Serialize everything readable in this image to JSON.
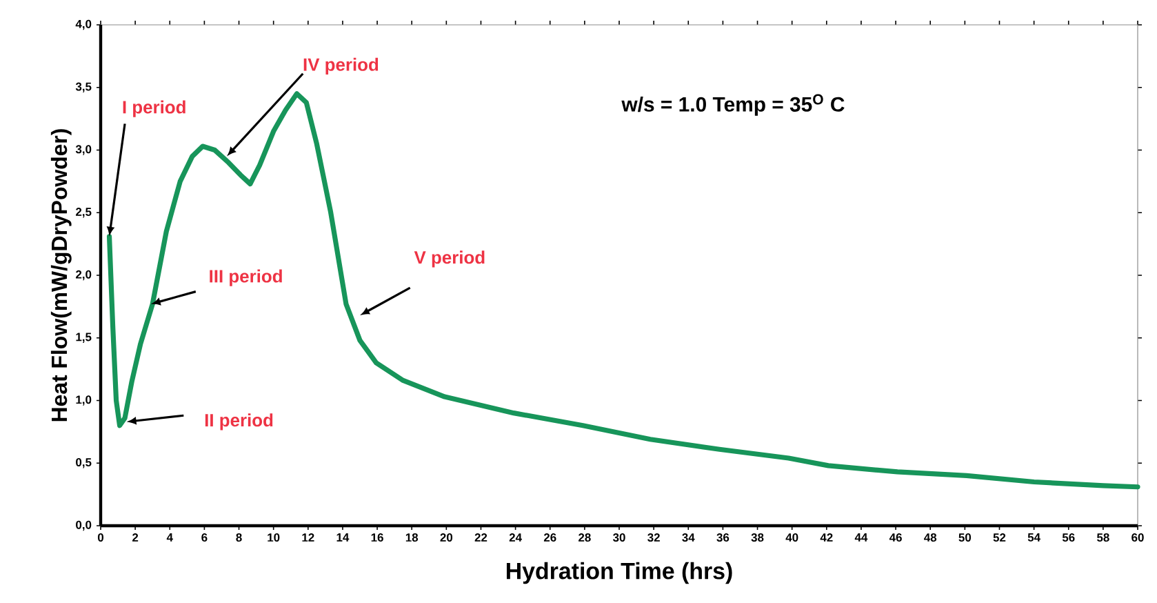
{
  "chart_data": {
    "type": "line",
    "xlabel": "Hydration Time (hrs)",
    "ylabel": "Heat Flow(mW/gDryPowder)",
    "series": [
      {
        "color": "#17955a",
        "x": [
          0.5,
          0.7,
          0.9,
          1.1,
          1.4,
          1.8,
          2.3,
          3.0,
          3.8,
          4.6,
          5.3,
          5.9,
          6.6,
          7.4,
          8.1,
          8.65,
          9.2,
          10.0,
          10.7,
          11.35,
          11.9,
          12.5,
          13.3,
          14.2,
          15.0,
          15.95,
          17.5,
          19.9,
          23.9,
          27.9,
          31.8,
          35.8,
          39.8,
          42.1,
          46.1,
          50.1,
          54.0,
          58.0,
          60.0
        ],
        "values": [
          2.31,
          1.6,
          1.0,
          0.8,
          0.86,
          1.15,
          1.45,
          1.77,
          2.35,
          2.75,
          2.95,
          3.03,
          3.0,
          2.9,
          2.8,
          2.73,
          2.88,
          3.15,
          3.32,
          3.45,
          3.38,
          3.05,
          2.51,
          1.77,
          1.48,
          1.3,
          1.16,
          1.03,
          0.9,
          0.8,
          0.69,
          0.61,
          0.54,
          0.48,
          0.43,
          0.4,
          0.35,
          0.32,
          0.31
        ]
      }
    ],
    "xlim": [
      0,
      60
    ],
    "xticks": [
      0,
      2,
      4,
      6,
      8,
      10,
      12,
      14,
      16,
      18,
      20,
      22,
      24,
      26,
      28,
      30,
      32,
      34,
      36,
      38,
      40,
      42,
      44,
      46,
      48,
      50,
      52,
      54,
      56,
      58,
      60
    ],
    "ylim": [
      0,
      4
    ],
    "yticks": [
      {
        "value": 0,
        "label": "0,0"
      },
      {
        "value": 0.5,
        "label": "0,5"
      },
      {
        "value": 1,
        "label": "1,0"
      },
      {
        "value": 1.5,
        "label": "1,5"
      },
      {
        "value": 2,
        "label": "2,0"
      },
      {
        "value": 2.5,
        "label": "2,5"
      },
      {
        "value": 3,
        "label": "3,0"
      },
      {
        "value": 3.5,
        "label": "3,5"
      },
      {
        "value": 4,
        "label": "4,0"
      }
    ],
    "grid": false,
    "marker": "none",
    "line_style": "solid",
    "annotations": [
      {
        "text": "I period",
        "x": 0.5,
        "y": 2.31
      },
      {
        "text": "II period",
        "x": 1.5,
        "y": 0.83
      },
      {
        "text": "III period",
        "x": 2.9,
        "y": 1.77
      },
      {
        "text": "IV period",
        "x": 7.3,
        "y": 2.95
      },
      {
        "text": "V period",
        "x": 15.0,
        "y": 1.68
      },
      "w/s = 1.0 Temp = 35$^{O}$ C"
    ]
  }
}
